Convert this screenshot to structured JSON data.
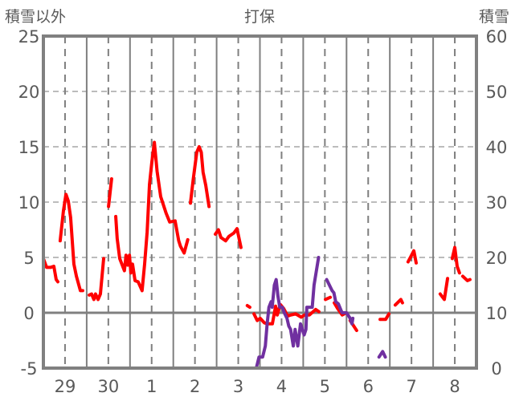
{
  "chart_data": {
    "type": "line",
    "title": "打保",
    "ylabel_left": "積雪以外",
    "ylabel_right": "積雪",
    "ylim_left": [
      -5,
      25
    ],
    "ylim_right": [
      0,
      60
    ],
    "yticks_left": [
      "25",
      "20",
      "15",
      "10",
      "5",
      "0",
      "-5"
    ],
    "yticks_right": [
      "60",
      "50",
      "40",
      "30",
      "20",
      "10",
      "0"
    ],
    "x_unit": "hours since start of day 29",
    "xlim": [
      0,
      240
    ],
    "xtick_labels": [
      "29",
      "30",
      "1",
      "2",
      "3",
      "4",
      "5",
      "6",
      "7",
      "8"
    ],
    "grid": true,
    "colors": {
      "temperature": "#ff0000",
      "snow_depth": "#7030a0",
      "frame": "#808080",
      "grid": "#7f7f7f"
    },
    "series": [
      {
        "name": "temperature",
        "axis": "left",
        "segments": [
          [
            [
              0,
              4.9
            ],
            [
              1.8,
              4.1
            ],
            [
              4,
              4.1
            ],
            [
              5.8,
              4.2
            ],
            [
              7.1,
              3.0
            ],
            [
              8,
              2.8
            ]
          ],
          [
            [
              9.3,
              6.5
            ],
            [
              11.1,
              9.2
            ],
            [
              12.5,
              10.7
            ],
            [
              13.8,
              10.1
            ],
            [
              15.1,
              8.6
            ],
            [
              16.9,
              4.4
            ],
            [
              18.3,
              3.3
            ],
            [
              20.5,
              2.0
            ],
            [
              21.8,
              2.0
            ]
          ],
          [
            [
              25.4,
              1.6
            ],
            [
              26.7,
              1.7
            ],
            [
              28,
              1.2
            ],
            [
              28.9,
              1.7
            ],
            [
              30.3,
              1.2
            ],
            [
              31.6,
              1.7
            ],
            [
              33.4,
              4.9
            ]
          ],
          [
            [
              36.1,
              9.6
            ],
            [
              37.8,
              12.1
            ]
          ],
          [
            [
              40.1,
              8.7
            ],
            [
              40.9,
              6.7
            ],
            [
              42.3,
              4.9
            ],
            [
              44.9,
              3.8
            ],
            [
              45.8,
              5.2
            ],
            [
              46.8,
              4.3
            ],
            [
              47.7,
              5.2
            ],
            [
              48.5,
              3.6
            ],
            [
              49.4,
              4.4
            ],
            [
              50.8,
              2.9
            ],
            [
              52.5,
              2.8
            ],
            [
              54.7,
              2.0
            ],
            [
              56.1,
              4.4
            ],
            [
              57.5,
              7.3
            ],
            [
              58.8,
              11.6
            ],
            [
              60.1,
              13.6
            ],
            [
              61.5,
              15.4
            ],
            [
              63,
              12.8
            ],
            [
              65,
              10.5
            ],
            [
              68,
              9
            ],
            [
              70,
              8.2
            ],
            [
              73,
              8.3
            ],
            [
              75,
              6.5
            ],
            [
              76,
              6
            ],
            [
              78,
              5.4
            ],
            [
              80,
              6.6
            ]
          ],
          [
            [
              81.5,
              9.9
            ],
            [
              83,
              12
            ],
            [
              85,
              14.5
            ],
            [
              86.3,
              15
            ],
            [
              87.5,
              14.5
            ],
            [
              88.5,
              12.7
            ],
            [
              90,
              11.5
            ],
            [
              91.8,
              9.6
            ]
          ],
          [
            [
              95.3,
              7.1
            ],
            [
              97,
              7.5
            ],
            [
              98.4,
              6.8
            ],
            [
              101,
              6.5
            ],
            [
              102.8,
              6.9
            ],
            [
              105.5,
              7.2
            ],
            [
              107.3,
              7.6
            ],
            [
              109.5,
              5.9
            ]
          ],
          [
            [
              113,
              0.65
            ],
            [
              114.4,
              0.5
            ]
          ],
          [
            [
              116.7,
              -0.1
            ],
            [
              118.5,
              -0.7
            ],
            [
              120.2,
              -0.5
            ],
            [
              122.4,
              -0.9
            ],
            [
              124.2,
              -1
            ],
            [
              126.9,
              -1
            ],
            [
              128.7,
              0.6
            ],
            [
              129.6,
              -0.2
            ],
            [
              131.3,
              0.75
            ],
            [
              133.1,
              0.4
            ],
            [
              135.4,
              -0.3
            ],
            [
              137.1,
              -0.2
            ],
            [
              139.8,
              -0.1
            ],
            [
              142.9,
              -0.4
            ],
            [
              144.7,
              -0.2
            ],
            [
              147.4,
              -0.2
            ],
            [
              150.9,
              0.3
            ],
            [
              152.7,
              0.1
            ]
          ],
          [
            [
              156.3,
              1.2
            ],
            [
              159,
              1.4
            ]
          ],
          [
            [
              161.2,
              0.9
            ],
            [
              163,
              0.4
            ],
            [
              165.6,
              -0.2
            ],
            [
              167.9,
              0
            ]
          ],
          [
            [
              170,
              -0.7
            ],
            [
              173.6,
              -1.6
            ]
          ],
          [
            [
              186.6,
              -0.6
            ],
            [
              189.7,
              -0.6
            ],
            [
              191.5,
              -0.1
            ]
          ],
          [
            [
              195,
              0.7
            ],
            [
              198.1,
              1.2
            ],
            [
              199,
              0.9
            ]
          ],
          [
            [
              202.1,
              4.6
            ],
            [
              205.3,
              5.6
            ],
            [
              206.6,
              4.5
            ]
          ],
          [
            [
              219.9,
              1.7
            ],
            [
              222.2,
              1.2
            ],
            [
              224,
              3.1
            ]
          ],
          [
            [
              226.6,
              4.9
            ],
            [
              228,
              5.9
            ],
            [
              229.3,
              4.2
            ],
            [
              230.6,
              3.6
            ]
          ],
          [
            [
              232.4,
              3.3
            ],
            [
              235,
              2.9
            ],
            [
              236.4,
              3.0
            ]
          ]
        ]
      },
      {
        "name": "snow_depth",
        "axis": "right",
        "segments": [
          [
            [
              0,
              0
            ],
            [
              22,
              0
            ]
          ],
          [
            [
              26,
              0
            ],
            [
              38,
              0
            ]
          ],
          [
            [
              40,
              0
            ],
            [
              80.6,
              0
            ]
          ],
          [
            [
              82,
              0
            ],
            [
              92.6,
              0
            ]
          ],
          [
            [
              96,
              0
            ],
            [
              100.6,
              0
            ]
          ],
          [
            [
              102,
              0
            ],
            [
              111,
              0
            ]
          ],
          [
            [
              114,
              0
            ],
            [
              118,
              0
            ],
            [
              119.5,
              2
            ],
            [
              121.5,
              2
            ],
            [
              123,
              4
            ],
            [
              124,
              8
            ],
            [
              125,
              11
            ],
            [
              126.2,
              12
            ],
            [
              126.8,
              11
            ],
            [
              128,
              15
            ],
            [
              129,
              16
            ],
            [
              130,
              13
            ],
            [
              131,
              11
            ],
            [
              132.5,
              11
            ],
            [
              133.5,
              10
            ],
            [
              135,
              9
            ],
            [
              136,
              7.6
            ],
            [
              137,
              7
            ],
            [
              138.5,
              4
            ],
            [
              139.5,
              7
            ],
            [
              141,
              4
            ],
            [
              142.5,
              8
            ],
            [
              143.5,
              7
            ],
            [
              144.5,
              6
            ],
            [
              145.5,
              7
            ],
            [
              146,
              11
            ],
            [
              149,
              11
            ],
            [
              150,
              15
            ],
            [
              151,
              17
            ],
            [
              152.5,
              20
            ]
          ],
          [
            [
              157,
              16
            ],
            [
              160,
              14
            ],
            [
              161,
              13.6
            ],
            [
              162,
              12
            ],
            [
              163.5,
              11.6
            ],
            [
              165.5,
              10
            ],
            [
              168,
              10
            ],
            [
              170,
              9
            ],
            [
              171,
              8
            ],
            [
              171.5,
              9
            ]
          ],
          [
            [
              186,
              2
            ],
            [
              188,
              3
            ],
            [
              189.5,
              2
            ]
          ],
          [
            [
              194,
              0
            ],
            [
              197,
              0
            ]
          ],
          [
            [
              198,
              0
            ],
            [
              201,
              0
            ]
          ],
          [
            [
              219,
              0
            ],
            [
              224,
              0
            ]
          ],
          [
            [
              226,
              0
            ],
            [
              230,
              0
            ]
          ],
          [
            [
              232,
              0
            ],
            [
              237,
              0
            ]
          ]
        ]
      }
    ]
  }
}
